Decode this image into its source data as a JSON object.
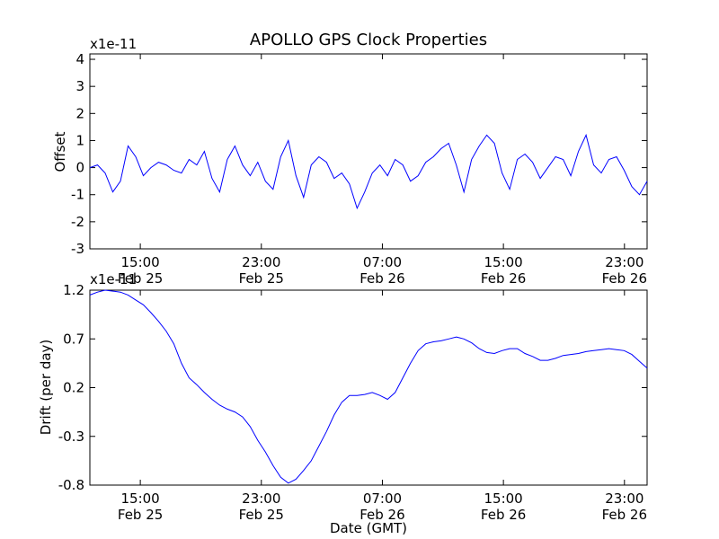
{
  "figure_title": "APOLLO GPS Clock Properties",
  "chart_data": [
    {
      "type": "line",
      "title": "APOLLO GPS Clock Properties",
      "xlabel": "",
      "ylabel": "Offset",
      "y_multiplier_label": "x1e-11",
      "ylim": [
        -3,
        4.2
      ],
      "yticks": [
        "-3",
        "-2",
        "-1",
        "0",
        "1",
        "2",
        "3",
        "4"
      ],
      "xlim": [
        "2008-02-25 11:40",
        "2008-02-27 00:30"
      ],
      "xticks": [
        {
          "time": "15:00",
          "date": "Feb 25"
        },
        {
          "time": "23:00",
          "date": "Feb 25"
        },
        {
          "time": "07:00",
          "date": "Feb 26"
        },
        {
          "time": "15:00",
          "date": "Feb 26"
        },
        {
          "time": "23:00",
          "date": "Feb 26"
        }
      ],
      "grid": false,
      "color": "#0000ff",
      "series": [
        {
          "x_hours_from_start": [
            0,
            0.5,
            1,
            1.5,
            2,
            2.5,
            3,
            3.5,
            4,
            4.5,
            5,
            5.5,
            6,
            6.5,
            7,
            7.5,
            8,
            8.5,
            9,
            9.5,
            10,
            10.5,
            11,
            11.5,
            12,
            12.5,
            13,
            13.5,
            14,
            14.5,
            15,
            15.5,
            16,
            16.5,
            17,
            17.5,
            18,
            18.5,
            19,
            19.5,
            20,
            20.5,
            21,
            21.5,
            22,
            22.5,
            23,
            23.5,
            24,
            24.5,
            25,
            25.5,
            26,
            26.5,
            27,
            27.5,
            28,
            28.5,
            29,
            29.5,
            30,
            30.5,
            31,
            31.5,
            32,
            32.5,
            33,
            33.5,
            34,
            34.5,
            35,
            35.5,
            36,
            36.5
          ],
          "values": [
            0,
            0.1,
            -0.2,
            -0.9,
            -0.5,
            0.8,
            0.4,
            -0.3,
            0,
            0.2,
            0.1,
            -0.1,
            -0.2,
            0.3,
            0.1,
            0.6,
            -0.4,
            -0.9,
            0.3,
            0.8,
            0.1,
            -0.3,
            0.2,
            -0.5,
            -0.8,
            0.4,
            1.0,
            -0.3,
            -1.1,
            0.1,
            0.4,
            0.2,
            -0.4,
            -0.2,
            -0.6,
            -1.5,
            -0.9,
            -0.2,
            0.1,
            -0.3,
            0.3,
            0.1,
            -0.5,
            -0.3,
            0.2,
            0.4,
            0.7,
            0.9,
            0.1,
            -0.9,
            0.3,
            0.8,
            1.2,
            0.9,
            -0.2,
            -0.8,
            0.3,
            0.5,
            0.2,
            -0.4,
            0.0,
            0.4,
            0.3,
            -0.3,
            0.6,
            1.2,
            0.1,
            -0.2,
            0.3,
            0.4,
            -0.1,
            -0.7,
            -1.0,
            -0.5
          ]
        }
      ]
    },
    {
      "type": "line",
      "title": "",
      "xlabel": "Date (GMT)",
      "ylabel": "Drift (per day)",
      "y_multiplier_label": "x1e-11",
      "ylim": [
        -0.8,
        1.2
      ],
      "yticks": [
        "-0.8",
        "-0.3",
        "0.2",
        "0.7",
        "1.2"
      ],
      "xlim": [
        "2008-02-25 11:40",
        "2008-02-27 00:30"
      ],
      "xticks": [
        {
          "time": "15:00",
          "date": "Feb 25"
        },
        {
          "time": "23:00",
          "date": "Feb 25"
        },
        {
          "time": "07:00",
          "date": "Feb 26"
        },
        {
          "time": "15:00",
          "date": "Feb 26"
        },
        {
          "time": "23:00",
          "date": "Feb 26"
        }
      ],
      "grid": false,
      "color": "#0000ff",
      "series": [
        {
          "x_hours_from_start": [
            0,
            0.5,
            1,
            1.5,
            2,
            2.5,
            3,
            3.5,
            4,
            4.5,
            5,
            5.5,
            6,
            6.5,
            7,
            7.5,
            8,
            8.5,
            9,
            9.5,
            10,
            10.5,
            11,
            11.5,
            12,
            12.5,
            13,
            13.5,
            14,
            14.5,
            15,
            15.5,
            16,
            16.5,
            17,
            17.5,
            18,
            18.5,
            19,
            19.5,
            20,
            20.5,
            21,
            21.5,
            22,
            22.5,
            23,
            23.5,
            24,
            24.5,
            25,
            25.5,
            26,
            26.5,
            27,
            27.5,
            28,
            28.5,
            29,
            29.5,
            30,
            30.5,
            31,
            31.5,
            32,
            32.5,
            33,
            33.5,
            34,
            34.5,
            35,
            35.5,
            36,
            36.5
          ],
          "values": [
            1.15,
            1.18,
            1.2,
            1.19,
            1.18,
            1.15,
            1.1,
            1.05,
            0.97,
            0.88,
            0.78,
            0.65,
            0.45,
            0.3,
            0.23,
            0.15,
            0.08,
            0.02,
            -0.02,
            -0.05,
            -0.1,
            -0.2,
            -0.34,
            -0.46,
            -0.6,
            -0.72,
            -0.78,
            -0.74,
            -0.65,
            -0.55,
            -0.4,
            -0.25,
            -0.08,
            0.05,
            0.12,
            0.12,
            0.13,
            0.15,
            0.12,
            0.08,
            0.15,
            0.3,
            0.45,
            0.58,
            0.65,
            0.67,
            0.68,
            0.7,
            0.72,
            0.7,
            0.66,
            0.6,
            0.56,
            0.55,
            0.58,
            0.6,
            0.6,
            0.55,
            0.52,
            0.48,
            0.48,
            0.5,
            0.53,
            0.54,
            0.55,
            0.57,
            0.58,
            0.59,
            0.6,
            0.59,
            0.58,
            0.54,
            0.47,
            0.4
          ]
        }
      ]
    }
  ]
}
